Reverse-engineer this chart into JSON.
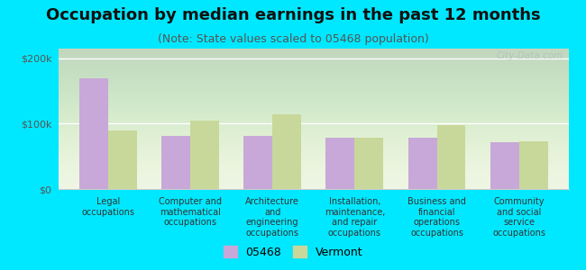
{
  "title": "Occupation by median earnings in the past 12 months",
  "subtitle": "(Note: State values scaled to 05468 population)",
  "categories": [
    "Legal\noccupations",
    "Computer and\nmathematical\noccupations",
    "Architecture\nand\nengineering\noccupations",
    "Installation,\nmaintenance,\nand repair\noccupations",
    "Business and\nfinancial\noperations\noccupations",
    "Community\nand social\nservice\noccupations"
  ],
  "values_05468": [
    170000,
    82000,
    82000,
    78000,
    79000,
    72000
  ],
  "values_vermont": [
    90000,
    105000,
    115000,
    79000,
    98000,
    73000
  ],
  "color_05468": "#c8a8d8",
  "color_vermont": "#c8d89a",
  "background_outer": "#00e8ff",
  "background_inner_top": "#e8f5e0",
  "background_inner_bot": "#f5fff5",
  "yticks": [
    0,
    100000,
    200000
  ],
  "ytick_labels": [
    "$0",
    "$100k",
    "$200k"
  ],
  "ylim": [
    0,
    215000
  ],
  "legend_05468": "05468",
  "legend_vermont": "Vermont",
  "bar_width": 0.35,
  "title_fontsize": 13,
  "subtitle_fontsize": 9,
  "watermark": "City-Data.com"
}
